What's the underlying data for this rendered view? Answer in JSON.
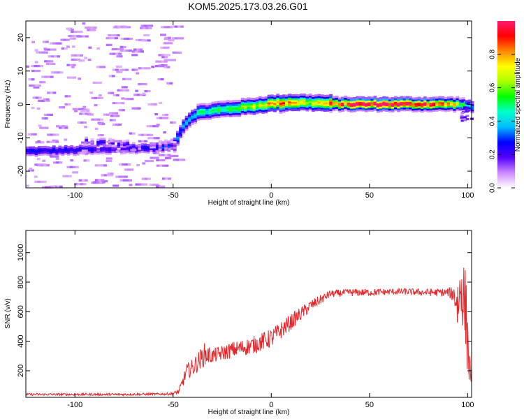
{
  "title": "KOM5.2025.173.03.26.G01",
  "chart_data": [
    {
      "type": "heatmap",
      "name": "spectrogram",
      "xlabel": "Height of straight line (km)",
      "ylabel": "Frequency (Hz)",
      "xlim": [
        -125,
        102
      ],
      "ylim": [
        -25,
        25
      ],
      "xticks": [
        -100,
        -50,
        0,
        50,
        100
      ],
      "yticks": [
        -20,
        -10,
        0,
        10,
        20
      ],
      "colorbar": {
        "label": "Normalized spectral amplitude",
        "range": [
          0,
          1
        ],
        "ticks": [
          0.0,
          0.2,
          0.4,
          0.6,
          0.8
        ],
        "tick_labels": [
          "0.0",
          "0.2",
          "0.4",
          "0.6",
          "0.8"
        ],
        "colormap": [
          "#ffffff",
          "#cc88ff",
          "#5500ff",
          "#0000ff",
          "#00bbff",
          "#00ffcc",
          "#00ff00",
          "#aaff00",
          "#ffff00",
          "#ff8800",
          "#ff0000",
          "#ff1a6e"
        ]
      },
      "ridge": {
        "x": [
          -125,
          -110,
          -95,
          -80,
          -65,
          -55,
          -50,
          -48,
          -45,
          -42,
          -38,
          -30,
          -20,
          -10,
          0,
          10,
          20,
          30,
          40,
          50,
          60,
          70,
          80,
          90,
          95,
          100,
          102
        ],
        "frequency": [
          -14,
          -13.8,
          -13.6,
          -13.4,
          -13,
          -12.7,
          -12,
          -9,
          -6,
          -4,
          -2.5,
          -1.8,
          -1.2,
          -0.5,
          0.3,
          0.6,
          0.5,
          0.2,
          0.1,
          0.1,
          0.1,
          0.1,
          0.1,
          0.1,
          0.1,
          -0.5,
          -1
        ],
        "amplitude": [
          0.25,
          0.25,
          0.25,
          0.2,
          0.25,
          0.3,
          0.35,
          0.3,
          0.35,
          0.35,
          0.45,
          0.5,
          0.55,
          0.65,
          0.85,
          0.75,
          0.7,
          0.85,
          0.95,
          1.0,
          1.0,
          1.0,
          0.95,
          0.85,
          0.6,
          0.4,
          0.3
        ]
      },
      "secondary_ridge": {
        "x": [
          -95,
          -85,
          -75,
          -65,
          -55,
          -50
        ],
        "frequency": [
          -11,
          -11.5,
          -12,
          -12.5,
          -12.5,
          -12
        ],
        "amplitude": [
          0.25,
          0.2,
          0.2,
          0.18,
          0.2,
          0.25
        ]
      },
      "noise_region": {
        "x": [
          -125,
          -50
        ],
        "frequency": [
          -25,
          25
        ],
        "amplitude": 0.08
      }
    },
    {
      "type": "line",
      "name": "snr",
      "xlabel": "Height of straight line (km)",
      "ylabel": "SNR (v/v)",
      "xlim": [
        -125,
        102
      ],
      "ylim": [
        20,
        1150
      ],
      "xticks": [
        -100,
        -50,
        0,
        50,
        100
      ],
      "yticks": [
        200,
        400,
        600,
        800,
        1000
      ],
      "color": "#e8252a",
      "envelope": {
        "x": [
          -125,
          -100,
          -75,
          -55,
          -50,
          -47,
          -45,
          -43,
          -40,
          -36,
          -34,
          -30,
          -20,
          -10,
          0,
          10,
          20,
          30,
          40,
          50,
          60,
          70,
          80,
          90,
          93,
          95,
          97,
          99,
          100,
          101,
          102
        ],
        "y": [
          40,
          40,
          40,
          42,
          45,
          60,
          130,
          200,
          220,
          280,
          310,
          300,
          340,
          370,
          420,
          530,
          640,
          720,
          730,
          730,
          735,
          735,
          730,
          730,
          720,
          650,
          780,
          600,
          400,
          200,
          180
        ],
        "noise": [
          8,
          8,
          8,
          8,
          10,
          20,
          40,
          50,
          60,
          70,
          80,
          50,
          55,
          60,
          65,
          55,
          40,
          25,
          25,
          25,
          22,
          22,
          25,
          30,
          60,
          220,
          260,
          280,
          250,
          120,
          60
        ]
      }
    }
  ]
}
